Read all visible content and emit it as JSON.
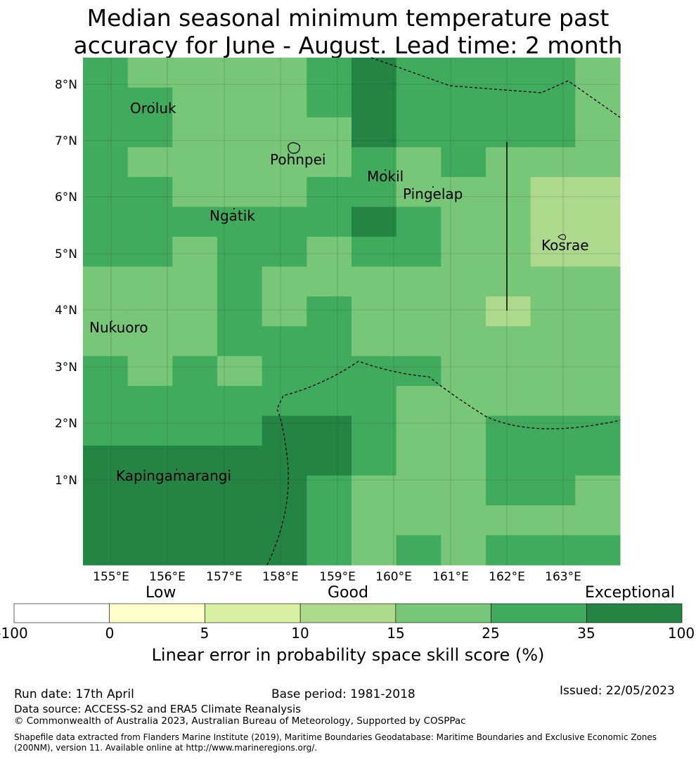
{
  "title": {
    "line1": "Median seasonal minimum temperature past",
    "line2": "accuracy for June - August. Lead time: 2 month"
  },
  "map": {
    "lon_ticks": [
      "155°E",
      "156°E",
      "157°E",
      "158°E",
      "159°E",
      "160°E",
      "161°E",
      "162°E",
      "163°E"
    ],
    "lat_ticks": [
      "8°N",
      "7°N",
      "6°N",
      "5°N",
      "4°N",
      "3°N",
      "2°N",
      "1°N"
    ],
    "places": [
      "Oroluk",
      "Pohnpei",
      "Mokil",
      "Pingelap",
      "Ngatik",
      "Kosrae",
      "Nukuoro",
      "Kapingamarangi"
    ],
    "class_colors": [
      "#add98d",
      "#78c678",
      "#41ab5d",
      "#238443"
    ],
    "grid_classes": [
      [
        2,
        1,
        1,
        1,
        1,
        2,
        3,
        2,
        2,
        2,
        2,
        1
      ],
      [
        2,
        2,
        1,
        1,
        1,
        2,
        3,
        2,
        2,
        2,
        2,
        1
      ],
      [
        2,
        2,
        1,
        1,
        1,
        1,
        3,
        2,
        2,
        2,
        2,
        1
      ],
      [
        2,
        1,
        1,
        1,
        1,
        1,
        2,
        1,
        2,
        1,
        1,
        1
      ],
      [
        2,
        2,
        1,
        1,
        1,
        2,
        2,
        1,
        1,
        1,
        0,
        0
      ],
      [
        2,
        2,
        2,
        2,
        2,
        2,
        3,
        2,
        1,
        1,
        0,
        0
      ],
      [
        2,
        2,
        1,
        2,
        2,
        1,
        2,
        2,
        1,
        1,
        0,
        0
      ],
      [
        1,
        1,
        1,
        2,
        1,
        1,
        1,
        1,
        1,
        1,
        1,
        1
      ],
      [
        1,
        1,
        1,
        2,
        1,
        2,
        1,
        1,
        1,
        0,
        1,
        1
      ],
      [
        1,
        1,
        1,
        2,
        2,
        2,
        1,
        1,
        1,
        1,
        1,
        1
      ],
      [
        2,
        1,
        2,
        1,
        2,
        2,
        2,
        2,
        1,
        1,
        1,
        1
      ],
      [
        2,
        2,
        2,
        2,
        2,
        2,
        2,
        1,
        1,
        1,
        1,
        1
      ],
      [
        2,
        2,
        2,
        2,
        3,
        3,
        2,
        1,
        1,
        2,
        2,
        2
      ],
      [
        3,
        3,
        3,
        3,
        3,
        3,
        2,
        1,
        1,
        2,
        2,
        2
      ],
      [
        3,
        3,
        3,
        3,
        3,
        2,
        1,
        1,
        1,
        2,
        2,
        1
      ],
      [
        3,
        3,
        3,
        3,
        3,
        2,
        1,
        1,
        1,
        1,
        1,
        1
      ],
      [
        3,
        3,
        3,
        3,
        3,
        2,
        1,
        2,
        1,
        2,
        2,
        2
      ]
    ]
  },
  "colorbar": {
    "category_labels": [
      "Low",
      "Good",
      "Exceptional"
    ],
    "ticks": [
      "-100",
      "0",
      "5",
      "10",
      "15",
      "25",
      "35",
      "100"
    ],
    "colors": [
      "#ffffff",
      "#ffffcc",
      "#d9f0a3",
      "#add98d",
      "#78c678",
      "#41ab5d",
      "#238443"
    ],
    "title": "Linear error in probability space skill score (%)"
  },
  "footer": {
    "run_date": "Run date: 17th April",
    "base_period": "Base period: 1981-2018",
    "issued": "Issued: 22/05/2023",
    "data_source": "Data source: ACCESS-S2 and ERA5 Climate Reanalysis",
    "copyright": "© Commonwealth of Australia 2023, Australian Bureau of Meteorology, Supported by COSPPac",
    "shapefile_1": "Shapefile data extracted from Flanders Marine Institute (2019), Maritime Boundaries Geodatabase: Maritime Boundaries and Exclusive Economic Zones",
    "shapefile_2": "(200NM), version 11. Available online at http://www.marineregions.org/."
  }
}
